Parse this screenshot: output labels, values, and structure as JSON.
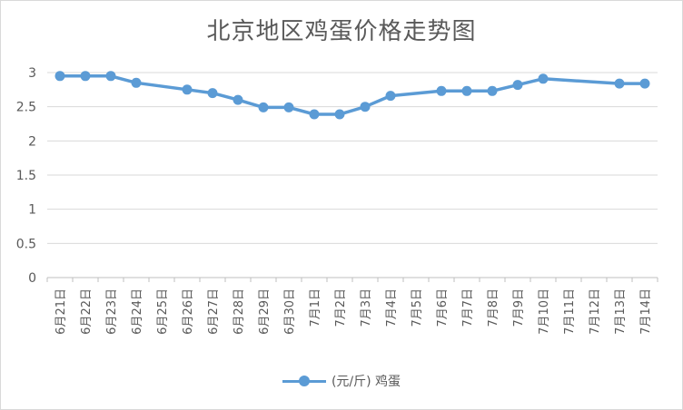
{
  "chart_data": {
    "type": "line",
    "title": "北京地区鸡蛋价格走势图",
    "categories": [
      "6月21日",
      "6月22日",
      "6月23日",
      "6月24日",
      "6月25日",
      "6月26日",
      "6月27日",
      "6月28日",
      "6月29日",
      "6月30日",
      "7月1日",
      "7月2日",
      "7月3日",
      "7月4日",
      "7月5日",
      "7月6日",
      "7月7日",
      "7月8日",
      "7月9日",
      "7月10日",
      "7月11日",
      "7月12日",
      "7月13日",
      "7月14日"
    ],
    "series": [
      {
        "name": "(元/斤) 鸡蛋",
        "values": [
          2.95,
          2.95,
          2.95,
          2.85,
          null,
          2.75,
          2.7,
          2.6,
          2.49,
          2.49,
          2.39,
          2.39,
          2.5,
          2.66,
          null,
          2.73,
          2.73,
          2.73,
          2.82,
          2.91,
          null,
          null,
          2.84,
          2.84
        ]
      }
    ],
    "yticks": [
      "0",
      "0.5",
      "1",
      "1.5",
      "2",
      "2.5",
      "3"
    ],
    "ylim": [
      0,
      3
    ],
    "xlabel": "",
    "ylabel": "",
    "grid": true,
    "legend": "bottom",
    "color": "#5b9bd5"
  }
}
